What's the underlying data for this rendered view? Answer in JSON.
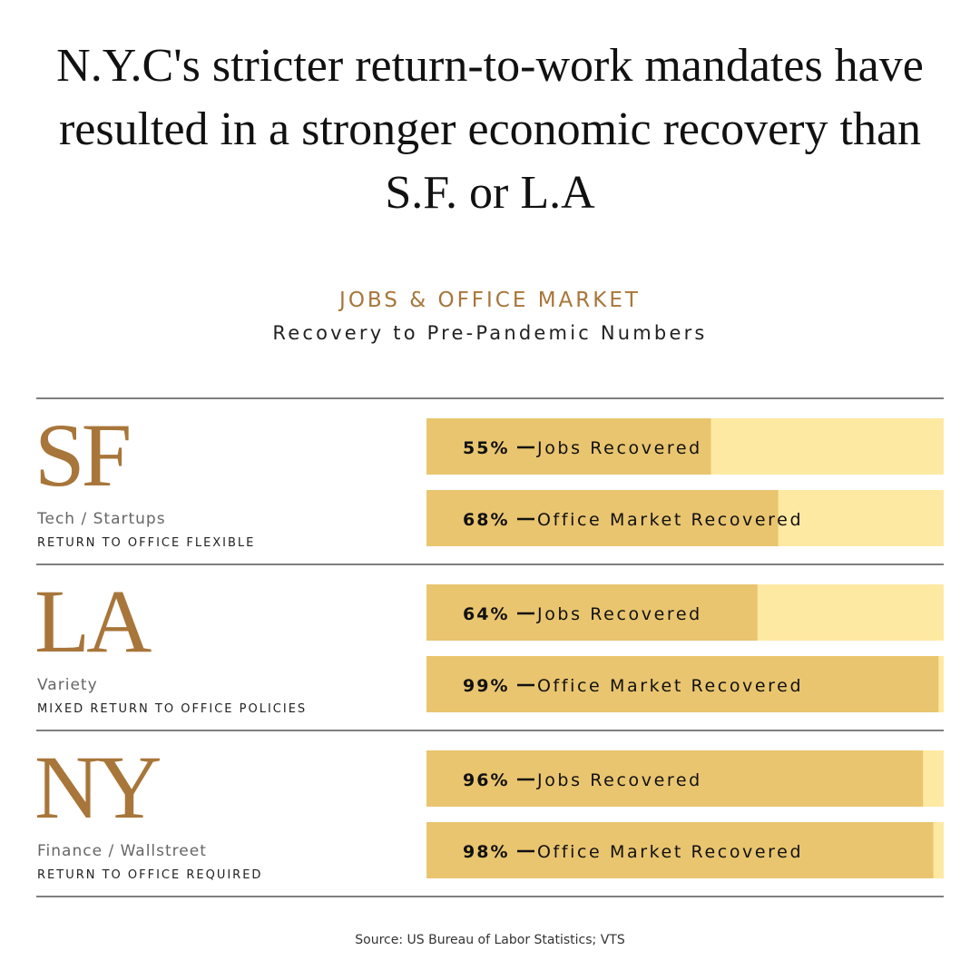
{
  "chart_data": {
    "type": "bar",
    "headline": "N.Y.C's stricter return-to-work mandates have resulted in a stronger economic recovery than S.F. or L.A",
    "title": "JOBS & OFFICE MARKET",
    "subtitle": "Recovery to Pre-Pandemic Numbers",
    "categories": [
      "SF",
      "LA",
      "NY"
    ],
    "category_sectors": [
      "Tech / Startups",
      "Variety",
      "Finance / Wallstreet"
    ],
    "category_policies": [
      "RETURN TO OFFICE FLEXIBLE",
      "MIXED RETURN TO OFFICE POLICIES",
      "RETURN TO OFFICE REQUIRED"
    ],
    "xlim": [
      0,
      100
    ],
    "track_color": "#fde9a2",
    "series": [
      {
        "name": "Jobs Recovered",
        "color": "#e9c56f",
        "values": [
          55,
          64,
          96
        ],
        "value_labels": [
          "55%",
          "64%",
          "96%"
        ]
      },
      {
        "name": "Office Market Recovered",
        "color": "#e9c56f",
        "values": [
          68,
          99,
          98
        ],
        "value_labels": [
          "68%",
          "99%",
          "98%"
        ]
      }
    ],
    "source": "Source: US Bureau of Labor Statistics; VTS"
  }
}
